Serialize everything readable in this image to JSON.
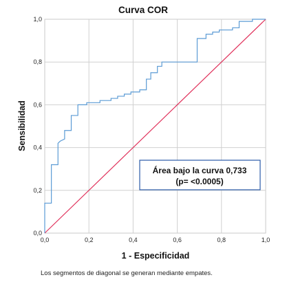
{
  "chart_data": {
    "type": "line",
    "title": "Curva COR",
    "xlabel": "1 - Especificidad",
    "ylabel": "Sensibilidad",
    "xlim": [
      0,
      1
    ],
    "ylim": [
      0,
      1
    ],
    "xticks": [
      "0,0",
      "0,2",
      "0,4",
      "0,6",
      "0,8",
      "1,0"
    ],
    "yticks": [
      "0,0",
      "0,2",
      "0,4",
      "0,6",
      "0,8",
      "1,0"
    ],
    "grid": true,
    "annotation": {
      "line1": "Área bajo la curva 0,733",
      "line2": "(p= <0.0005)"
    },
    "footnote": "Los segmentos de diagonal se generan mediante empates.",
    "colors": {
      "roc": "#5b9bd5",
      "reference": "#e0305a",
      "annotation_border": "#2a5aa8",
      "grid": "#d0d0d0"
    },
    "series": [
      {
        "x": [
          0.0,
          0.0,
          0.03,
          0.03,
          0.06,
          0.06,
          0.07,
          0.09,
          0.09,
          0.12,
          0.12,
          0.15,
          0.15,
          0.19,
          0.19,
          0.25,
          0.25,
          0.3,
          0.3,
          0.33,
          0.33,
          0.36,
          0.36,
          0.39,
          0.39,
          0.43,
          0.43,
          0.46,
          0.46,
          0.48,
          0.48,
          0.51,
          0.51,
          0.53,
          0.53,
          0.58,
          0.58,
          0.61,
          0.61,
          0.66,
          0.66,
          0.69,
          0.69,
          0.73,
          0.73,
          0.76,
          0.76,
          0.79,
          0.79,
          0.82,
          0.82,
          0.85,
          0.85,
          0.88,
          0.88,
          0.94,
          0.94,
          1.0
        ],
        "y": [
          0.0,
          0.14,
          0.14,
          0.32,
          0.32,
          0.42,
          0.43,
          0.44,
          0.48,
          0.48,
          0.55,
          0.55,
          0.6,
          0.6,
          0.61,
          0.61,
          0.62,
          0.62,
          0.63,
          0.63,
          0.64,
          0.64,
          0.65,
          0.65,
          0.66,
          0.66,
          0.67,
          0.67,
          0.72,
          0.72,
          0.75,
          0.75,
          0.78,
          0.78,
          0.8,
          0.8,
          0.8,
          0.8,
          0.8,
          0.8,
          0.8,
          0.8,
          0.91,
          0.91,
          0.93,
          0.93,
          0.94,
          0.94,
          0.95,
          0.95,
          0.95,
          0.95,
          0.96,
          0.96,
          0.99,
          0.99,
          1.0,
          1.0
        ]
      },
      {
        "x": [
          0.0,
          1.0
        ],
        "y": [
          0.0,
          1.0
        ]
      }
    ]
  }
}
